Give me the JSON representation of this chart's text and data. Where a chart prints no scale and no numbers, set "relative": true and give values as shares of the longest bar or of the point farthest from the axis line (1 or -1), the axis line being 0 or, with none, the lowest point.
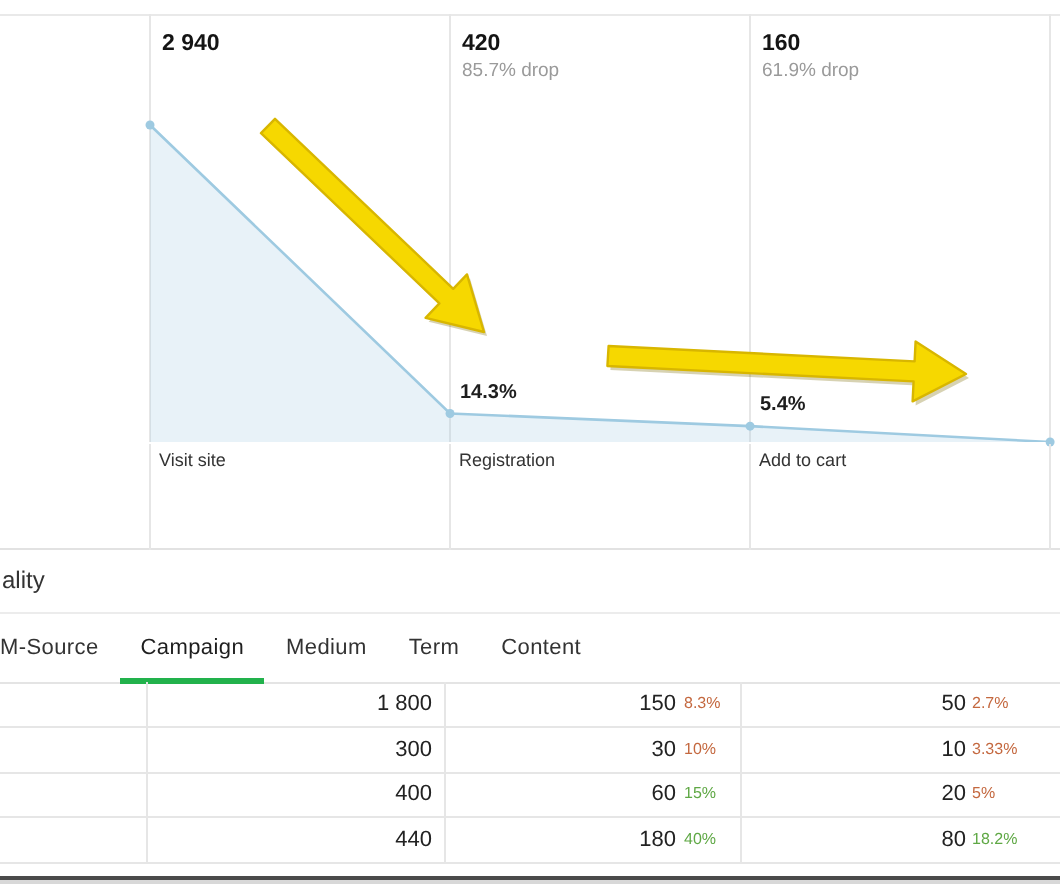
{
  "chart_data": [
    {
      "type": "area",
      "categories": [
        "Visit site",
        "Registration",
        "Add to cart",
        null
      ],
      "values": [
        1,
        0.09,
        0.05,
        0
      ],
      "relative": true,
      "color": "#9ecae1",
      "annotations": [
        "2 940",
        "420\n85.7% drop",
        "160\n61.9% drop",
        {
          "text": "14.3%",
          "x": "Registration",
          "y": 0.09
        },
        {
          "text": "5.4%",
          "x": "Add to cart",
          "y": 0.05
        }
      ],
      "grid": "x",
      "marker": "circle",
      "tick_labels": "x"
    },
    {
      "type": "other",
      "title": "ality",
      "categories": [
        "M-Source",
        "Campaign",
        "Medium",
        "Term",
        "Content"
      ],
      "cell_labels": [
        [
          "1 800",
          "150",
          "8.3%",
          "50",
          "2.7%"
        ],
        [
          "300",
          "30",
          "10%",
          "10",
          "3.33%"
        ],
        [
          "400",
          "60",
          "15%",
          "20",
          "5%"
        ],
        [
          "440",
          "180",
          "40%",
          "80",
          "18.2%"
        ]
      ],
      "colors": [
        [
          null,
          null,
          "#c4683f",
          null,
          "#c4683f"
        ],
        [
          null,
          null,
          "#c4683f",
          null,
          "#c4683f"
        ],
        [
          null,
          null,
          "#5fa845",
          null,
          "#c4683f"
        ],
        [
          null,
          null,
          "#5fa845",
          null,
          "#5fa845"
        ]
      ]
    }
  ]
}
